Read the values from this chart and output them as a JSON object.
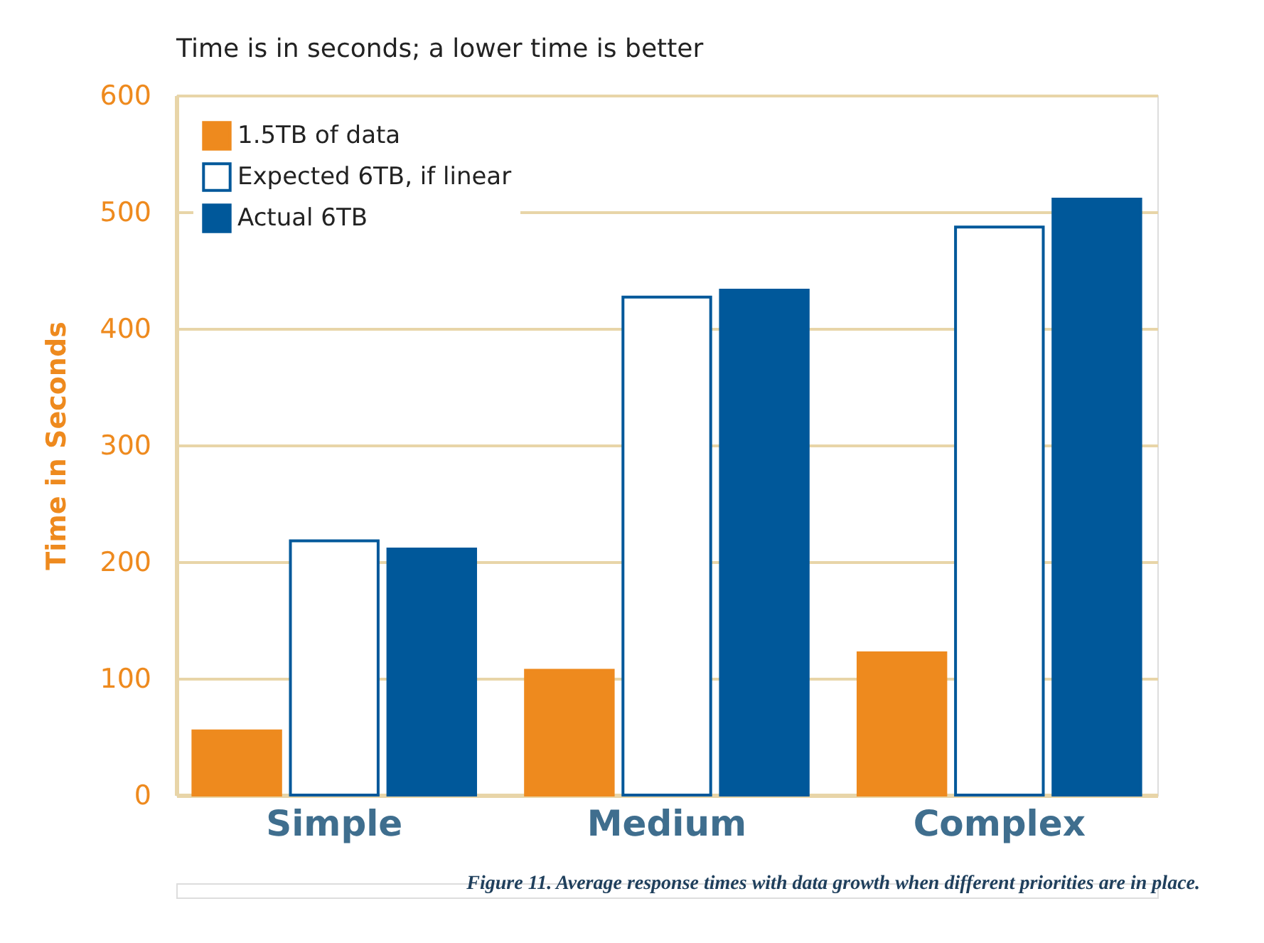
{
  "chart_data": {
    "type": "bar",
    "title": "Time is in seconds; a lower time is better",
    "ylabel": "Time in Seconds",
    "categories": [
      "Simple",
      "Medium",
      "Complex"
    ],
    "series": [
      {
        "name": "1.5TB of data",
        "color": "#ee8a1e",
        "values": [
          55,
          107,
          122
        ]
      },
      {
        "name": "Expected 6TB, if linear",
        "color": "#00589a",
        "values": [
          218,
          427,
          487
        ]
      },
      {
        "name": "Actual 6TB",
        "color": "#00589a",
        "values": [
          211,
          433,
          511
        ]
      }
    ],
    "ylim": [
      0,
      600
    ],
    "yticks": [
      0,
      100,
      200,
      300,
      400,
      500,
      600
    ],
    "grid": "y",
    "legend": "top left",
    "annotations": [
      "Figure 11. Average response times with data growth when different priorities are in place."
    ]
  }
}
